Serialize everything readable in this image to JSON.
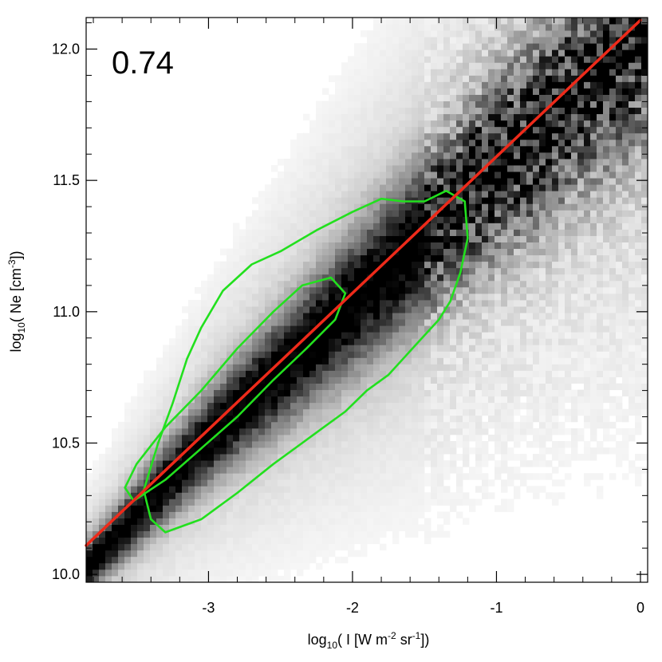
{
  "chart_data": {
    "type": "heatmap",
    "title": "",
    "annotation": "0.74",
    "xlabel_parts": {
      "prefix": "log",
      "sub": "10",
      "mid": "( I [W m",
      "sup1": "-2",
      "mid2": " sr",
      "sup2": "-1",
      "suffix": "])"
    },
    "ylabel_parts": {
      "prefix": "log",
      "sub": "10",
      "mid": "( Ne [cm",
      "sup1": "-3",
      "suffix": "])"
    },
    "xlim": [
      -3.85,
      0.05
    ],
    "ylim": [
      9.97,
      12.12
    ],
    "x_ticks": [
      {
        "value": -3,
        "label": "-3"
      },
      {
        "value": -2,
        "label": "-2"
      },
      {
        "value": -1,
        "label": "-1"
      },
      {
        "value": 0,
        "label": "0"
      }
    ],
    "y_ticks": [
      {
        "value": 10.0,
        "label": "10.0"
      },
      {
        "value": 10.5,
        "label": "10.5"
      },
      {
        "value": 11.0,
        "label": "11.0"
      },
      {
        "value": 11.5,
        "label": "11.5"
      },
      {
        "value": 12.0,
        "label": "12.0"
      }
    ],
    "fit_line": {
      "color": "#ee2a1a",
      "points": [
        [
          -3.85,
          10.11
        ],
        [
          0.0,
          12.11
        ]
      ]
    },
    "density": {
      "colormap": "white-to-black",
      "ridge": [
        [
          -3.8,
          10.05
        ],
        [
          -3.0,
          10.52
        ],
        [
          -2.0,
          11.03
        ],
        [
          -1.0,
          11.55
        ],
        [
          0.0,
          12.05
        ]
      ]
    },
    "contours": {
      "color": "#22e01e",
      "inner": [
        [
          -3.52,
          10.28
        ],
        [
          -3.3,
          10.36
        ],
        [
          -3.05,
          10.48
        ],
        [
          -2.8,
          10.6
        ],
        [
          -2.55,
          10.74
        ],
        [
          -2.32,
          10.86
        ],
        [
          -2.12,
          10.97
        ],
        [
          -2.05,
          11.07
        ],
        [
          -2.15,
          11.13
        ],
        [
          -2.35,
          11.1
        ],
        [
          -2.55,
          11.0
        ],
        [
          -2.8,
          10.86
        ],
        [
          -3.05,
          10.7
        ],
        [
          -3.3,
          10.56
        ],
        [
          -3.5,
          10.42
        ],
        [
          -3.58,
          10.33
        ]
      ],
      "outer": [
        [
          -3.3,
          10.16
        ],
        [
          -3.05,
          10.21
        ],
        [
          -2.8,
          10.31
        ],
        [
          -2.55,
          10.42
        ],
        [
          -2.35,
          10.5
        ],
        [
          -2.2,
          10.56
        ],
        [
          -2.05,
          10.62
        ],
        [
          -1.9,
          10.7
        ],
        [
          -1.75,
          10.76
        ],
        [
          -1.55,
          10.88
        ],
        [
          -1.4,
          10.97
        ],
        [
          -1.32,
          11.04
        ],
        [
          -1.25,
          11.15
        ],
        [
          -1.2,
          11.28
        ],
        [
          -1.22,
          11.42
        ],
        [
          -1.35,
          11.46
        ],
        [
          -1.5,
          11.42
        ],
        [
          -1.65,
          11.42
        ],
        [
          -1.8,
          11.43
        ],
        [
          -2.0,
          11.38
        ],
        [
          -2.25,
          11.31
        ],
        [
          -2.5,
          11.23
        ],
        [
          -2.7,
          11.18
        ],
        [
          -2.9,
          11.08
        ],
        [
          -3.05,
          10.94
        ],
        [
          -3.15,
          10.82
        ],
        [
          -3.25,
          10.65
        ],
        [
          -3.35,
          10.5
        ],
        [
          -3.45,
          10.32
        ],
        [
          -3.4,
          10.21
        ]
      ]
    }
  }
}
